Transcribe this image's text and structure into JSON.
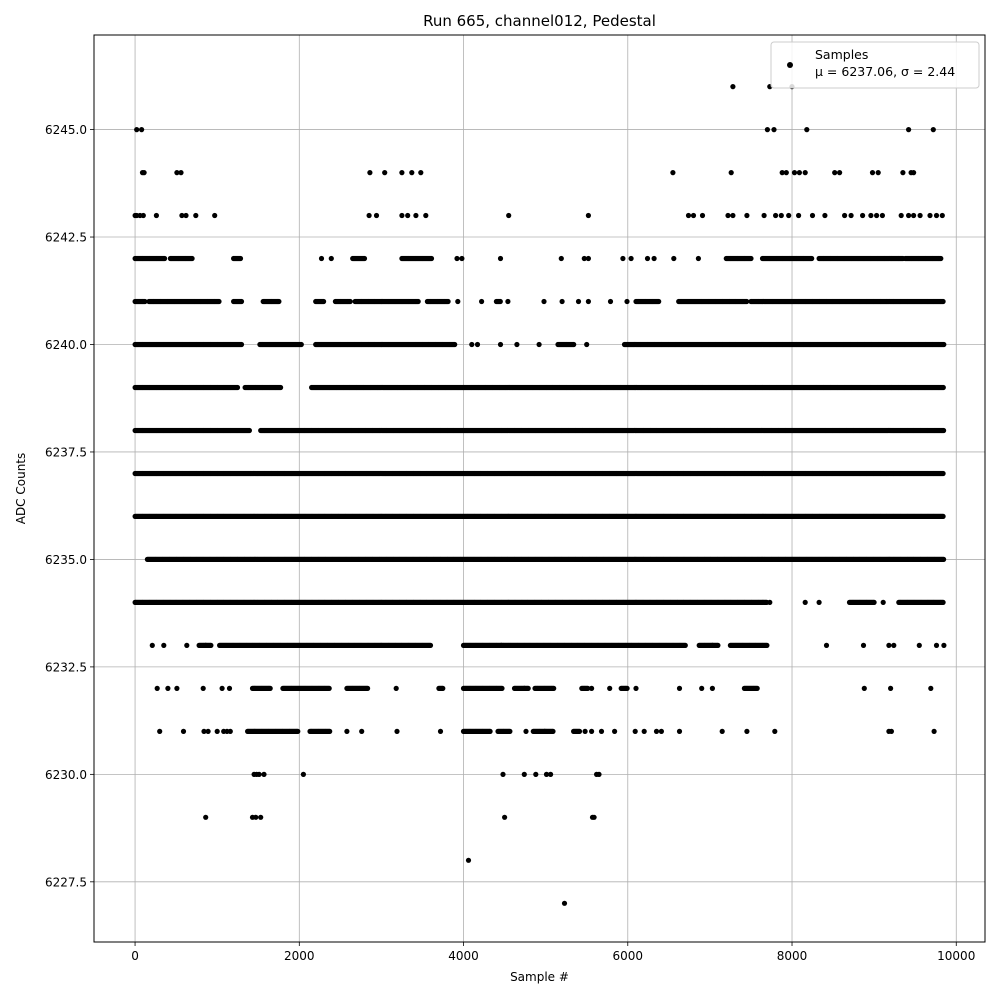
{
  "chart_data": {
    "type": "scatter",
    "title": "Run 665, channel012, Pedestal",
    "xlabel": "Sample #",
    "ylabel": "ADC Counts",
    "xlim": [
      -500,
      10350
    ],
    "ylim": [
      6226.1,
      6247.2
    ],
    "x_ticks": [
      0,
      2000,
      4000,
      6000,
      8000,
      10000
    ],
    "y_ticks": [
      6227.5,
      6230.0,
      6232.5,
      6235.0,
      6237.5,
      6240.0,
      6242.5,
      6245.0
    ],
    "x_tick_labels": [
      "0",
      "2000",
      "4000",
      "6000",
      "8000",
      "10000"
    ],
    "y_tick_labels": [
      "6227.5",
      "6230.0",
      "6232.5",
      "6235.0",
      "6237.5",
      "6240.0",
      "6242.5",
      "6245.0"
    ],
    "grid": true,
    "legend_position": "top-right",
    "marker_color": "#000000",
    "series": [
      {
        "name": "Samples",
        "stats_label": "μ = 6237.06, σ = 2.44",
        "mean": 6237.06,
        "std": 2.44,
        "x_range": [
          0,
          9850
        ],
        "levels": [
          {
            "y": 6246,
            "x": [
              7280,
              7730,
              8000
            ]
          },
          {
            "y": 6245,
            "x": [
              20,
              80,
              7700,
              7780,
              8180,
              9420,
              9720
            ]
          },
          {
            "y": 6244,
            "x": [
              90,
              110,
              510,
              560,
              2860,
              3040,
              3250,
              3370,
              3480,
              6550,
              7260,
              7880,
              7930,
              8030,
              8090,
              8160,
              8520,
              8580,
              8980,
              9050,
              9350,
              9450,
              9480
            ]
          },
          {
            "y": 6243,
            "x": [
              0,
              20,
              60,
              100,
              260,
              570,
              620,
              740,
              970,
              2850,
              2940,
              3250,
              3320,
              3420,
              3540,
              4550,
              5520,
              6740,
              6800,
              6910,
              7220,
              7280,
              7450,
              7660,
              7800,
              7870,
              7960,
              8080,
              8250,
              8400,
              8640,
              8720,
              8860,
              8960,
              9030,
              9100,
              9330,
              9420,
              9480,
              9560,
              9680,
              9760,
              9830
            ]
          },
          {
            "y": 6242,
            "x": [
              2270,
              2390,
              3920,
              3980,
              4450,
              5190,
              5470,
              5520,
              5940,
              6040,
              6240,
              6320,
              6560,
              6860
            ],
            "range": [
              [
                0,
                370
              ],
              [
                430,
                700
              ],
              [
                1200,
                1290
              ],
              [
                2650,
                2800
              ],
              [
                3250,
                3620
              ],
              [
                7200,
                7500
              ],
              [
                7640,
                8250
              ],
              [
                8330,
                9350
              ],
              [
                9380,
                9820
              ]
            ]
          },
          {
            "y": 6241,
            "x": [
              3930,
              4220,
              4540,
              4980,
              5200,
              5400,
              5520,
              5790,
              5990
            ],
            "range": [
              [
                0,
                130
              ],
              [
                170,
                1030
              ],
              [
                1200,
                1300
              ],
              [
                1560,
                1760
              ],
              [
                2200,
                2300
              ],
              [
                2440,
                2620
              ],
              [
                2680,
                3450
              ],
              [
                3560,
                3820
              ],
              [
                4400,
                4450
              ],
              [
                6100,
                6380
              ],
              [
                6620,
                7450
              ],
              [
                7500,
                9850
              ]
            ]
          },
          {
            "y": 6240,
            "x": [
              4100,
              4170,
              4450,
              4650,
              4920,
              5500
            ],
            "range": [
              [
                0,
                1300
              ],
              [
                1520,
                2030
              ],
              [
                2200,
                3900
              ],
              [
                5150,
                5350
              ],
              [
                5960,
                9850
              ]
            ]
          },
          {
            "y": 6239,
            "range": [
              [
                0,
                1250
              ],
              [
                1340,
                1780
              ],
              [
                2150,
                9850
              ]
            ]
          },
          {
            "y": 6238,
            "range": [
              [
                0,
                1400
              ],
              [
                1530,
                9850
              ]
            ]
          },
          {
            "y": 6237,
            "range": [
              [
                0,
                9850
              ]
            ]
          },
          {
            "y": 6236,
            "range": [
              [
                0,
                9850
              ]
            ]
          },
          {
            "y": 6235,
            "range": [
              [
                150,
                9850
              ]
            ]
          },
          {
            "y": 6234,
            "x": [
              7730,
              8160,
              8330,
              9110
            ],
            "range": [
              [
                0,
                7700
              ],
              [
                8700,
                9000
              ],
              [
                9300,
                9850
              ]
            ]
          },
          {
            "y": 6233,
            "x": [
              210,
              350,
              630,
              860,
              4460,
              7030,
              8420,
              8870,
              9180,
              9240,
              9550,
              9760,
              9850
            ],
            "range": [
              [
                780,
                930
              ],
              [
                1030,
                3600
              ],
              [
                4000,
                6700
              ],
              [
                6870,
                7100
              ],
              [
                7250,
                7700
              ]
            ]
          },
          {
            "y": 6232,
            "x": [
              270,
              400,
              510,
              830,
              1060,
              1150,
              3180,
              4740,
              5560,
              5780,
              6100,
              6630,
              6900,
              7030,
              8880,
              9200,
              9690
            ],
            "range": [
              [
                1430,
                1650
              ],
              [
                1800,
                2370
              ],
              [
                2580,
                2840
              ],
              [
                3700,
                3750
              ],
              [
                4000,
                4470
              ],
              [
                4620,
                4790
              ],
              [
                4870,
                5100
              ],
              [
                5440,
                5520
              ],
              [
                5920,
                6000
              ],
              [
                7420,
                7580
              ]
            ]
          },
          {
            "y": 6231,
            "x": [
              300,
              590,
              840,
              890,
              1000,
              1080,
              1120,
              1160,
              2580,
              2760,
              3190,
              3720,
              4760,
              4990,
              5480,
              5560,
              5680,
              5840,
              6090,
              6200,
              6350,
              6410,
              6630,
              7150,
              7450,
              7790,
              9180,
              9210,
              9730
            ],
            "range": [
              [
                1370,
                1990
              ],
              [
                2130,
                2380
              ],
              [
                4000,
                4330
              ],
              [
                4420,
                4570
              ],
              [
                4850,
                5100
              ],
              [
                5340,
                5420
              ]
            ]
          },
          {
            "y": 6230,
            "x": [
              1450,
              1480,
              1510,
              1570,
              2050,
              4480,
              4740,
              4880,
              5010,
              5060,
              5620,
              5650
            ]
          },
          {
            "y": 6229,
            "x": [
              860,
              1430,
              1470,
              1530,
              4500,
              5570,
              5590
            ]
          },
          {
            "y": 6228,
            "x": [
              4060
            ]
          },
          {
            "y": 6227,
            "x": [
              5230
            ]
          }
        ]
      }
    ]
  }
}
